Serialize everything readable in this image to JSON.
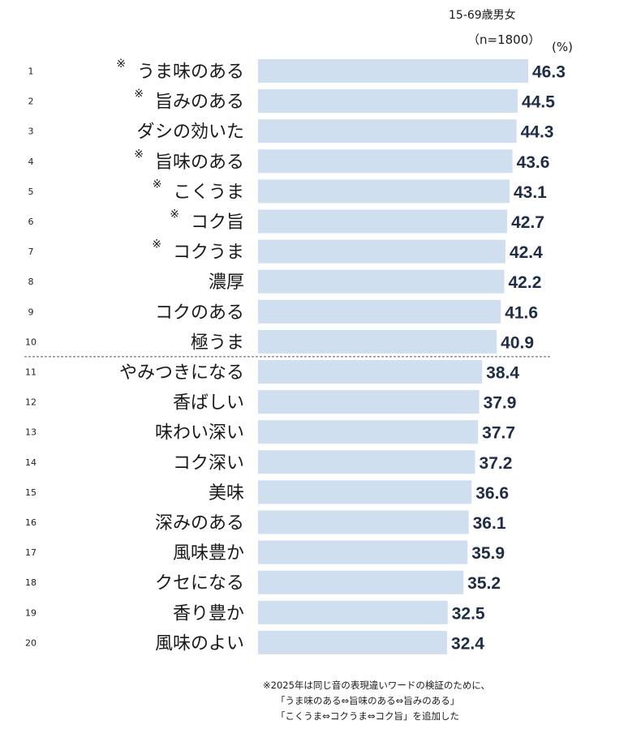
{
  "header": {
    "subtitle": "15-69歳男女",
    "sample": "（n=1800）",
    "unit": "(%)"
  },
  "notes": [
    "※2025年は同じ音の表現違いワードの検証のために、",
    "「うま味のある⇔旨味のある⇔旨みのある」",
    "「こくうま⇔コクうま⇔コク旨」を追加した"
  ],
  "chart_data": {
    "type": "bar",
    "orientation": "horizontal",
    "ranks": [
      "1",
      "2",
      "3",
      "4",
      "5",
      "6",
      "7",
      "8",
      "9",
      "10",
      "11",
      "12",
      "13",
      "14",
      "15",
      "16",
      "17",
      "18",
      "19",
      "20"
    ],
    "categories": [
      "うま味のある",
      "旨みのある",
      "ダシの効いた",
      "旨味のある",
      "こくうま",
      "コク旨",
      "コクうま",
      "濃厚",
      "コクのある",
      "極うま",
      "やみつきになる",
      "香ばしい",
      "味わい深い",
      "コク深い",
      "美味",
      "深みのある",
      "風味豊か",
      "クセになる",
      "香り豊か",
      "風味のよい"
    ],
    "markers": [
      "※",
      "※",
      "",
      "※",
      "※",
      "※",
      "※",
      "",
      "",
      "",
      "",
      "",
      "",
      "",
      "",
      "",
      "",
      "",
      "",
      ""
    ],
    "values": [
      46.3,
      44.5,
      44.3,
      43.6,
      43.1,
      42.7,
      42.4,
      42.2,
      41.6,
      40.9,
      38.4,
      37.9,
      37.7,
      37.2,
      36.6,
      36.1,
      35.9,
      35.2,
      32.5,
      32.4
    ],
    "xlim": [
      0,
      46.3
    ],
    "bar_color": "#cfdff0",
    "value_color": "#1f2d45",
    "separator_after_rank": "10",
    "grid": false,
    "legend": "none"
  }
}
